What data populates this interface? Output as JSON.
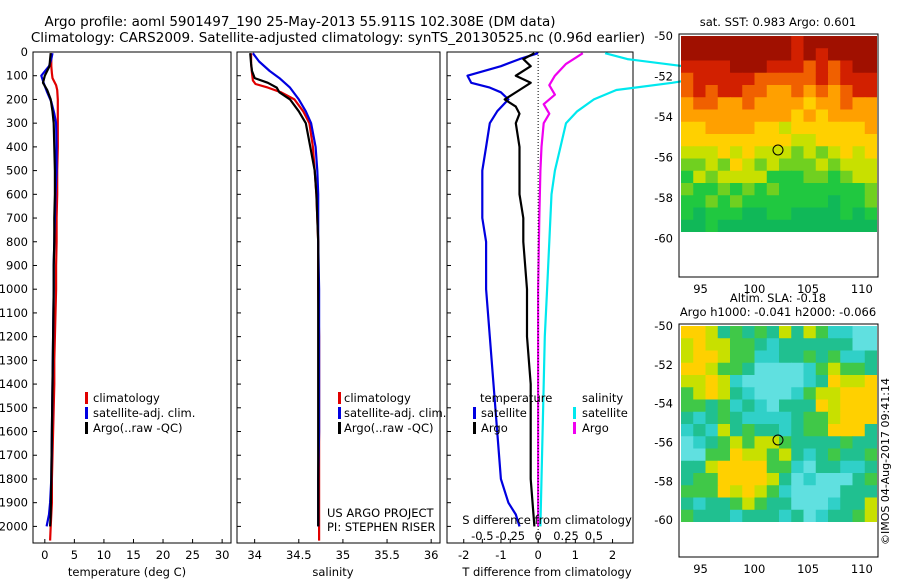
{
  "header": {
    "line1": "Argo profile: aoml 5901497_190 25-May-2013 55.911S 102.308E (DM data)",
    "line2": "Climatology: CARS2009. Satellite-adjusted climatology: synTS_20130525.nc (0.96d earlier)"
  },
  "colors": {
    "climatology": "#e00000",
    "satellite": "#0000e0",
    "argo": "#000000",
    "sat_salinity": "#00e8ee",
    "argo_salinity": "#f000f0"
  },
  "credits": {
    "project": "US ARGO PROJECT",
    "pi": "PI: STEPHEN RISER",
    "timestamp": "©IMOS 04-Aug-2017 09:41:14"
  },
  "chart_data": [
    {
      "type": "line",
      "id": "temperature",
      "xlabel": "temperature (deg C)",
      "ylabel": "",
      "xlim": [
        -2,
        31.5
      ],
      "ylim": [
        2070,
        0
      ],
      "xticks": [
        "0",
        "5",
        "10",
        "15",
        "20",
        "25",
        "30"
      ],
      "yticks": [
        "0",
        "100",
        "200",
        "300",
        "400",
        "500",
        "600",
        "700",
        "800",
        "900",
        "1000",
        "1100",
        "1200",
        "1300",
        "1400",
        "1500",
        "1600",
        "1700",
        "1800",
        "1900",
        "2000"
      ],
      "legend": [
        "climatology",
        "satellite-adj. clim.",
        "Argo(..raw -QC)"
      ],
      "series": [
        {
          "name": "climatology",
          "color": "#e00000",
          "x": [
            1.0,
            1.1,
            1.1,
            1.2,
            1.3,
            1.5,
            1.9,
            2.1,
            2.2,
            2.2,
            2.2,
            2.2,
            2.1,
            2.1,
            2.0,
            2.0,
            1.9,
            1.9,
            1.8,
            1.7,
            1.6,
            1.6,
            1.5,
            1.4,
            1.3,
            1.2,
            1.2,
            1.1,
            1.0,
            0.9
          ],
          "y": [
            5,
            30,
            60,
            90,
            110,
            120,
            140,
            160,
            200,
            250,
            300,
            400,
            500,
            600,
            700,
            800,
            900,
            1000,
            1100,
            1200,
            1300,
            1400,
            1500,
            1600,
            1700,
            1800,
            1900,
            1950,
            2000,
            2060
          ]
        },
        {
          "name": "satellite-adj. clim.",
          "color": "#0000e0",
          "x": [
            1.3,
            1.1,
            0.7,
            -0.6,
            -0.2,
            0.4,
            1.1,
            1.6,
            1.9,
            2.0,
            2.0,
            1.8,
            1.7,
            1.6,
            1.5,
            1.5,
            1.4,
            1.3,
            1.2,
            1.1,
            0.9,
            0.7,
            0.3
          ],
          "y": [
            5,
            30,
            60,
            100,
            130,
            170,
            210,
            260,
            300,
            400,
            500,
            600,
            700,
            800,
            900,
            1000,
            1200,
            1400,
            1600,
            1800,
            1900,
            1950,
            2000
          ]
        },
        {
          "name": "Argo(..raw -QC)",
          "color": "#000000",
          "x": [
            1.0,
            0.9,
            0.8,
            0.0,
            -0.3,
            0.4,
            1.0,
            1.3,
            1.5,
            1.6,
            1.7,
            1.7,
            1.6,
            1.6,
            1.5,
            1.5,
            1.4,
            1.3,
            1.2,
            1.1,
            1.0,
            0.9
          ],
          "y": [
            5,
            30,
            60,
            100,
            130,
            160,
            200,
            250,
            300,
            400,
            500,
            600,
            700,
            800,
            900,
            1000,
            1200,
            1400,
            1600,
            1800,
            1950,
            2000
          ]
        }
      ]
    },
    {
      "type": "line",
      "id": "salinity",
      "xlabel": "salinity",
      "ylabel": "",
      "xlim": [
        33.8,
        36.1
      ],
      "ylim": [
        2070,
        0
      ],
      "xticks": [
        "34",
        "34.5",
        "35",
        "35.5",
        "36"
      ],
      "legend": [
        "climatology",
        "satellite-adj. clim.",
        "Argo(..raw -QC)"
      ],
      "series": [
        {
          "name": "climatology",
          "color": "#e00000",
          "x": [
            33.96,
            33.96,
            33.97,
            33.98,
            34.01,
            34.15,
            34.3,
            34.45,
            34.55,
            34.62,
            34.66,
            34.68,
            34.7,
            34.71,
            34.72,
            34.72,
            34.73,
            34.73,
            34.73,
            34.73,
            34.73,
            34.73
          ],
          "y": [
            5,
            50,
            90,
            120,
            135,
            150,
            170,
            200,
            250,
            300,
            400,
            500,
            600,
            700,
            800,
            1000,
            1200,
            1400,
            1600,
            1800,
            1950,
            2060
          ]
        },
        {
          "name": "satellite-adj. clim.",
          "color": "#0000e0",
          "x": [
            33.98,
            34.05,
            34.17,
            34.28,
            34.4,
            34.5,
            34.58,
            34.64,
            34.69,
            34.71,
            34.72,
            34.72,
            34.73,
            34.73,
            34.73,
            34.73,
            34.72,
            34.72,
            34.72
          ],
          "y": [
            5,
            40,
            80,
            110,
            150,
            200,
            250,
            300,
            400,
            500,
            600,
            800,
            1000,
            1200,
            1400,
            1600,
            1800,
            1950,
            2000
          ]
        },
        {
          "name": "Argo(..raw -QC)",
          "color": "#000000",
          "x": [
            33.95,
            33.96,
            33.97,
            34.0,
            34.15,
            34.25,
            34.28,
            34.4,
            34.5,
            34.58,
            34.63,
            34.68,
            34.7,
            34.71,
            34.72,
            34.72,
            34.72,
            34.72,
            34.72
          ],
          "y": [
            5,
            50,
            80,
            110,
            130,
            150,
            170,
            200,
            250,
            300,
            400,
            500,
            600,
            700,
            800,
            1000,
            1400,
            1800,
            2000
          ]
        }
      ]
    },
    {
      "type": "line",
      "id": "difference",
      "xlabel": "T difference from climatology",
      "xlabel2": "S difference from climatology",
      "xlim": [
        -2.45,
        2.55
      ],
      "ylim": [
        2070,
        0
      ],
      "xticks": [
        "-2",
        "-1",
        "0",
        "1",
        "2"
      ],
      "xticks2": [
        "-0.5",
        "-0.25",
        "0",
        "0.25",
        "0.5"
      ],
      "legend_headers": [
        "temperature",
        "salinity"
      ],
      "legend": [
        "satellite",
        "Argo",
        "satellite",
        "Argo"
      ],
      "series": [
        {
          "name": "temperature satellite",
          "color": "#0000e0",
          "x": [
            0.0,
            -0.5,
            -1.0,
            -1.9,
            -1.8,
            -1.3,
            -1.0,
            -0.8,
            -1.1,
            -1.3,
            -1.4,
            -1.5,
            -1.5,
            -1.5,
            -1.4,
            -1.4,
            -1.3,
            -1.2,
            -1.1,
            -1.0,
            -0.8,
            -0.6,
            -0.5
          ],
          "y": [
            5,
            30,
            60,
            100,
            130,
            150,
            170,
            200,
            250,
            300,
            400,
            500,
            600,
            700,
            800,
            1000,
            1200,
            1400,
            1600,
            1800,
            1900,
            1950,
            2000
          ]
        },
        {
          "name": "temperature Argo",
          "color": "#000000",
          "x": [
            -0.1,
            -0.4,
            -0.2,
            -0.6,
            -0.2,
            -0.5,
            -0.9,
            -0.6,
            -0.5,
            -0.6,
            -0.5,
            -0.5,
            -0.5,
            -0.4,
            -0.4,
            -0.3,
            -0.3,
            -0.2,
            -0.2,
            -0.2,
            -0.1
          ],
          "y": [
            5,
            30,
            60,
            100,
            130,
            160,
            200,
            230,
            260,
            300,
            400,
            500,
            600,
            700,
            800,
            1000,
            1200,
            1400,
            1600,
            1800,
            2000
          ]
        },
        {
          "name": "salinity satellite",
          "color": "#00e8ee",
          "x": [
            0.6,
            0.8,
            1.3,
            1.6,
            1.2,
            0.7,
            0.5,
            0.35,
            0.25,
            0.2,
            0.15,
            0.12,
            0.1,
            0.08,
            0.06,
            0.05,
            0.04,
            0.03,
            0.02
          ],
          "y": [
            5,
            30,
            60,
            100,
            130,
            160,
            200,
            250,
            300,
            400,
            500,
            600,
            800,
            1000,
            1200,
            1400,
            1600,
            1800,
            2000
          ]
        },
        {
          "name": "salinity Argo",
          "color": "#f000f0",
          "x": [
            0.4,
            0.25,
            0.15,
            0.1,
            0.15,
            0.05,
            0.1,
            0.05,
            0.03,
            0.02,
            0.01,
            0.0,
            0.0,
            0.0,
            0.0
          ],
          "y": [
            5,
            50,
            100,
            140,
            180,
            220,
            260,
            300,
            400,
            500,
            700,
            1000,
            1400,
            1800,
            2000
          ]
        }
      ]
    },
    {
      "type": "heatmap",
      "id": "sst_map",
      "title": "sat. SST: 0.983 Argo: 0.601",
      "xticks": [
        "95",
        "100",
        "105",
        "110"
      ],
      "yticks": [
        "-50",
        "-52",
        "-54",
        "-56",
        "-58",
        "-60"
      ],
      "xlim": [
        93,
        111.5
      ],
      "ylim": [
        -61.9,
        -50
      ],
      "marker": {
        "lon": 102.3,
        "lat": -55.9
      }
    },
    {
      "type": "heatmap",
      "id": "sla_map",
      "title": "Altim. SLA: -0.18",
      "title2": "Argo h1000: -0.041 h2000: -0.066",
      "xticks": [
        "95",
        "100",
        "105",
        "110"
      ],
      "yticks": [
        "-50",
        "-52",
        "-54",
        "-56",
        "-58",
        "-60"
      ],
      "xlim": [
        93,
        111.5
      ],
      "ylim": [
        -61.9,
        -50
      ],
      "marker": {
        "lon": 102.3,
        "lat": -55.9
      }
    }
  ]
}
